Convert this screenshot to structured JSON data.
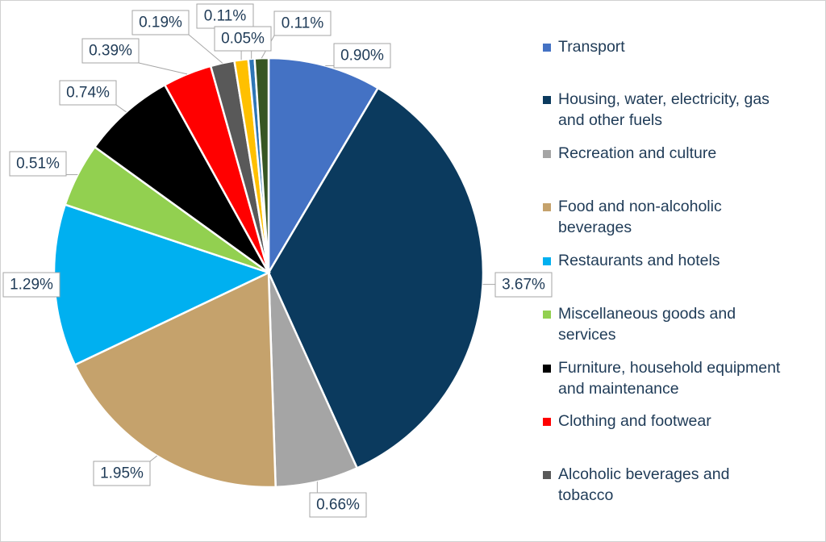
{
  "chart_data": {
    "type": "pie",
    "title": "",
    "legend_position": "right",
    "slices": [
      {
        "label": "Transport",
        "value": 0.9,
        "display": "0.90%",
        "color": "#4472c4"
      },
      {
        "label": "Housing, water, electricity, gas and other fuels",
        "value": 3.67,
        "display": "3.67%",
        "color": "#0b3a5e"
      },
      {
        "label": "Recreation and culture",
        "value": 0.66,
        "display": "0.66%",
        "color": "#a5a5a5"
      },
      {
        "label": "Food and non-alcoholic beverages",
        "value": 1.95,
        "display": "1.95%",
        "color": "#c5a26c"
      },
      {
        "label": "Restaurants and hotels",
        "value": 1.29,
        "display": "1.29%",
        "color": "#00b0f0"
      },
      {
        "label": "Miscellaneous goods and services",
        "value": 0.51,
        "display": "0.51%",
        "color": "#92d050"
      },
      {
        "label": "Furniture, household equipment and maintenance",
        "value": 0.74,
        "display": "0.74%",
        "color": "#000000"
      },
      {
        "label": "Clothing and footwear",
        "value": 0.39,
        "display": "0.39%",
        "color": "#ff0000"
      },
      {
        "label": "Alcoholic beverages and tobacco",
        "value": 0.19,
        "display": "0.19%",
        "color": "#595959"
      },
      {
        "label": "",
        "value": 0.11,
        "display": "0.11%",
        "color": "#ffc000"
      },
      {
        "label": "",
        "value": 0.05,
        "display": "0.05%",
        "color": "#2e75b6"
      },
      {
        "label": "",
        "value": 0.11,
        "display": "0.11%",
        "color": "#375623"
      }
    ]
  },
  "legend": {
    "entries": [
      {
        "lines": [
          "Transport"
        ],
        "color": "#4472c4"
      },
      {
        "lines": [
          "Housing, water, electricity, gas",
          "and other fuels"
        ],
        "color": "#0b3a5e"
      },
      {
        "lines": [
          "Recreation and culture"
        ],
        "color": "#a5a5a5"
      },
      {
        "lines": [
          "Food and non-alcoholic",
          "beverages"
        ],
        "color": "#c5a26c"
      },
      {
        "lines": [
          "Restaurants and hotels"
        ],
        "color": "#00b0f0"
      },
      {
        "lines": [
          "Miscellaneous goods and",
          "services"
        ],
        "color": "#92d050"
      },
      {
        "lines": [
          "Furniture, household equipment",
          "and maintenance"
        ],
        "color": "#000000"
      },
      {
        "lines": [
          "Clothing and footwear"
        ],
        "color": "#ff0000"
      },
      {
        "lines": [
          "Alcoholic beverages and",
          "tobacco"
        ],
        "color": "#595959"
      }
    ]
  }
}
